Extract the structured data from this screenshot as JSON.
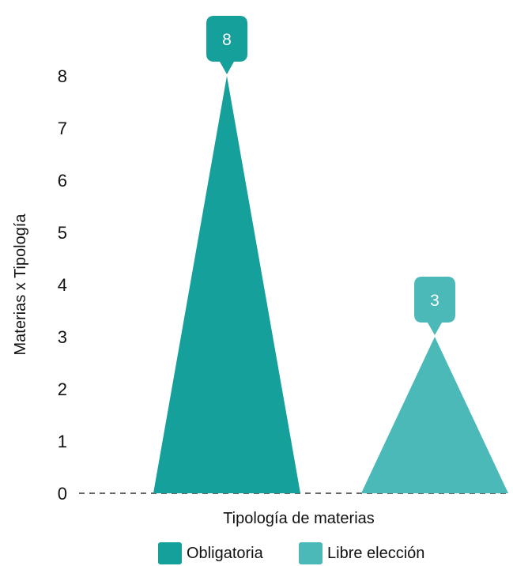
{
  "chart_data": {
    "type": "bar",
    "shape": "triangle",
    "categories": [
      "Obligatoria",
      "Libre elección"
    ],
    "values": [
      8,
      3
    ],
    "ylim": [
      0,
      8
    ],
    "yticks": [
      0,
      1,
      2,
      3,
      4,
      5,
      6,
      7,
      8
    ],
    "xlabel": "Tipología de materias",
    "ylabel": "Materias x Tipología",
    "colors": [
      "#16a09b",
      "#4ab9b7"
    ],
    "legend": [
      {
        "label": "Obligatoria",
        "color": "#16a09b"
      },
      {
        "label": "Libre elección",
        "color": "#4ab9b7"
      }
    ],
    "legend_position": "bottom-center",
    "grid": false
  }
}
